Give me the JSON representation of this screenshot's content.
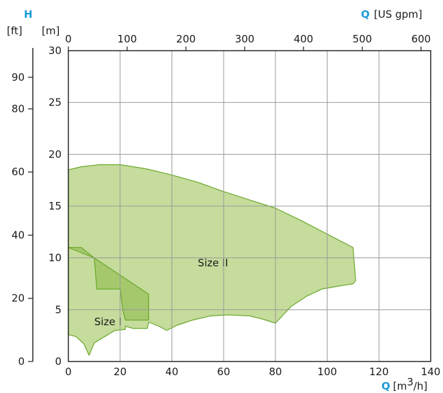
{
  "chart_data": {
    "type": "area",
    "title": "",
    "x_axis": {
      "letter": "Q",
      "unit_prefix": "[m",
      "unit_sup": "3",
      "unit_suffix": "/h]",
      "range": [
        0,
        140
      ],
      "ticks": [
        0,
        20,
        40,
        60,
        80,
        100,
        120,
        140
      ]
    },
    "x2_axis": {
      "letter": "Q",
      "unit": "[US gpm]",
      "ticks": [
        0,
        100,
        200,
        300,
        400,
        500,
        600
      ],
      "m3h_per_gpm": 0.22712
    },
    "y_axis": {
      "letter": "H",
      "unit": "[m]",
      "range": [
        0,
        30
      ],
      "ticks": [
        0,
        5,
        10,
        15,
        20,
        25,
        30
      ]
    },
    "y2_axis": {
      "unit": "[ft]",
      "ticks": [
        0,
        20,
        40,
        60,
        80,
        90
      ],
      "m_per_ft": 0.3048
    },
    "grid": true,
    "colors": {
      "size2_fill": "#c5dc9c",
      "size1_fill": "#9fc465",
      "outline": "#6aa72a",
      "grid": "#9a9a9a",
      "accent": "#1a9ad6"
    },
    "series": [
      {
        "name": "Size II",
        "label_at": [
          50,
          9.2
        ],
        "polygon": [
          [
            0,
            18.5
          ],
          [
            5,
            18.8
          ],
          [
            12,
            19.0
          ],
          [
            20,
            19.0
          ],
          [
            30,
            18.6
          ],
          [
            40,
            18.0
          ],
          [
            50,
            17.3
          ],
          [
            60,
            16.4
          ],
          [
            70,
            15.6
          ],
          [
            80,
            14.8
          ],
          [
            90,
            13.6
          ],
          [
            100,
            12.3
          ],
          [
            110,
            11.0
          ],
          [
            111,
            7.8
          ],
          [
            110,
            7.5
          ],
          [
            105,
            7.3
          ],
          [
            98,
            7.0
          ],
          [
            92,
            6.3
          ],
          [
            86,
            5.3
          ],
          [
            80,
            3.7
          ],
          [
            75,
            4.1
          ],
          [
            70,
            4.4
          ],
          [
            62,
            4.5
          ],
          [
            55,
            4.4
          ],
          [
            48,
            4.0
          ],
          [
            42,
            3.5
          ],
          [
            38,
            3.0
          ],
          [
            35,
            3.4
          ],
          [
            31,
            3.8
          ],
          [
            30.5,
            3.2
          ],
          [
            25,
            3.2
          ],
          [
            22,
            3.4
          ],
          [
            22,
            3.1
          ],
          [
            18,
            3.0
          ],
          [
            14,
            2.4
          ],
          [
            10,
            1.8
          ],
          [
            8,
            0.6
          ],
          [
            6,
            1.7
          ],
          [
            3,
            2.4
          ],
          [
            0,
            2.6
          ],
          [
            0,
            18.5
          ]
        ]
      },
      {
        "name": "Size I",
        "label_at": [
          10,
          3.5
        ],
        "polygon": [
          [
            0,
            11.0
          ],
          [
            5,
            11.0
          ],
          [
            10,
            10.0
          ],
          [
            31,
            6.5
          ],
          [
            31,
            4.0
          ],
          [
            22,
            4.0
          ],
          [
            21,
            5.0
          ],
          [
            20,
            7.0
          ],
          [
            11,
            7.0
          ],
          [
            10,
            10.0
          ],
          [
            0,
            11.0
          ]
        ]
      }
    ]
  }
}
